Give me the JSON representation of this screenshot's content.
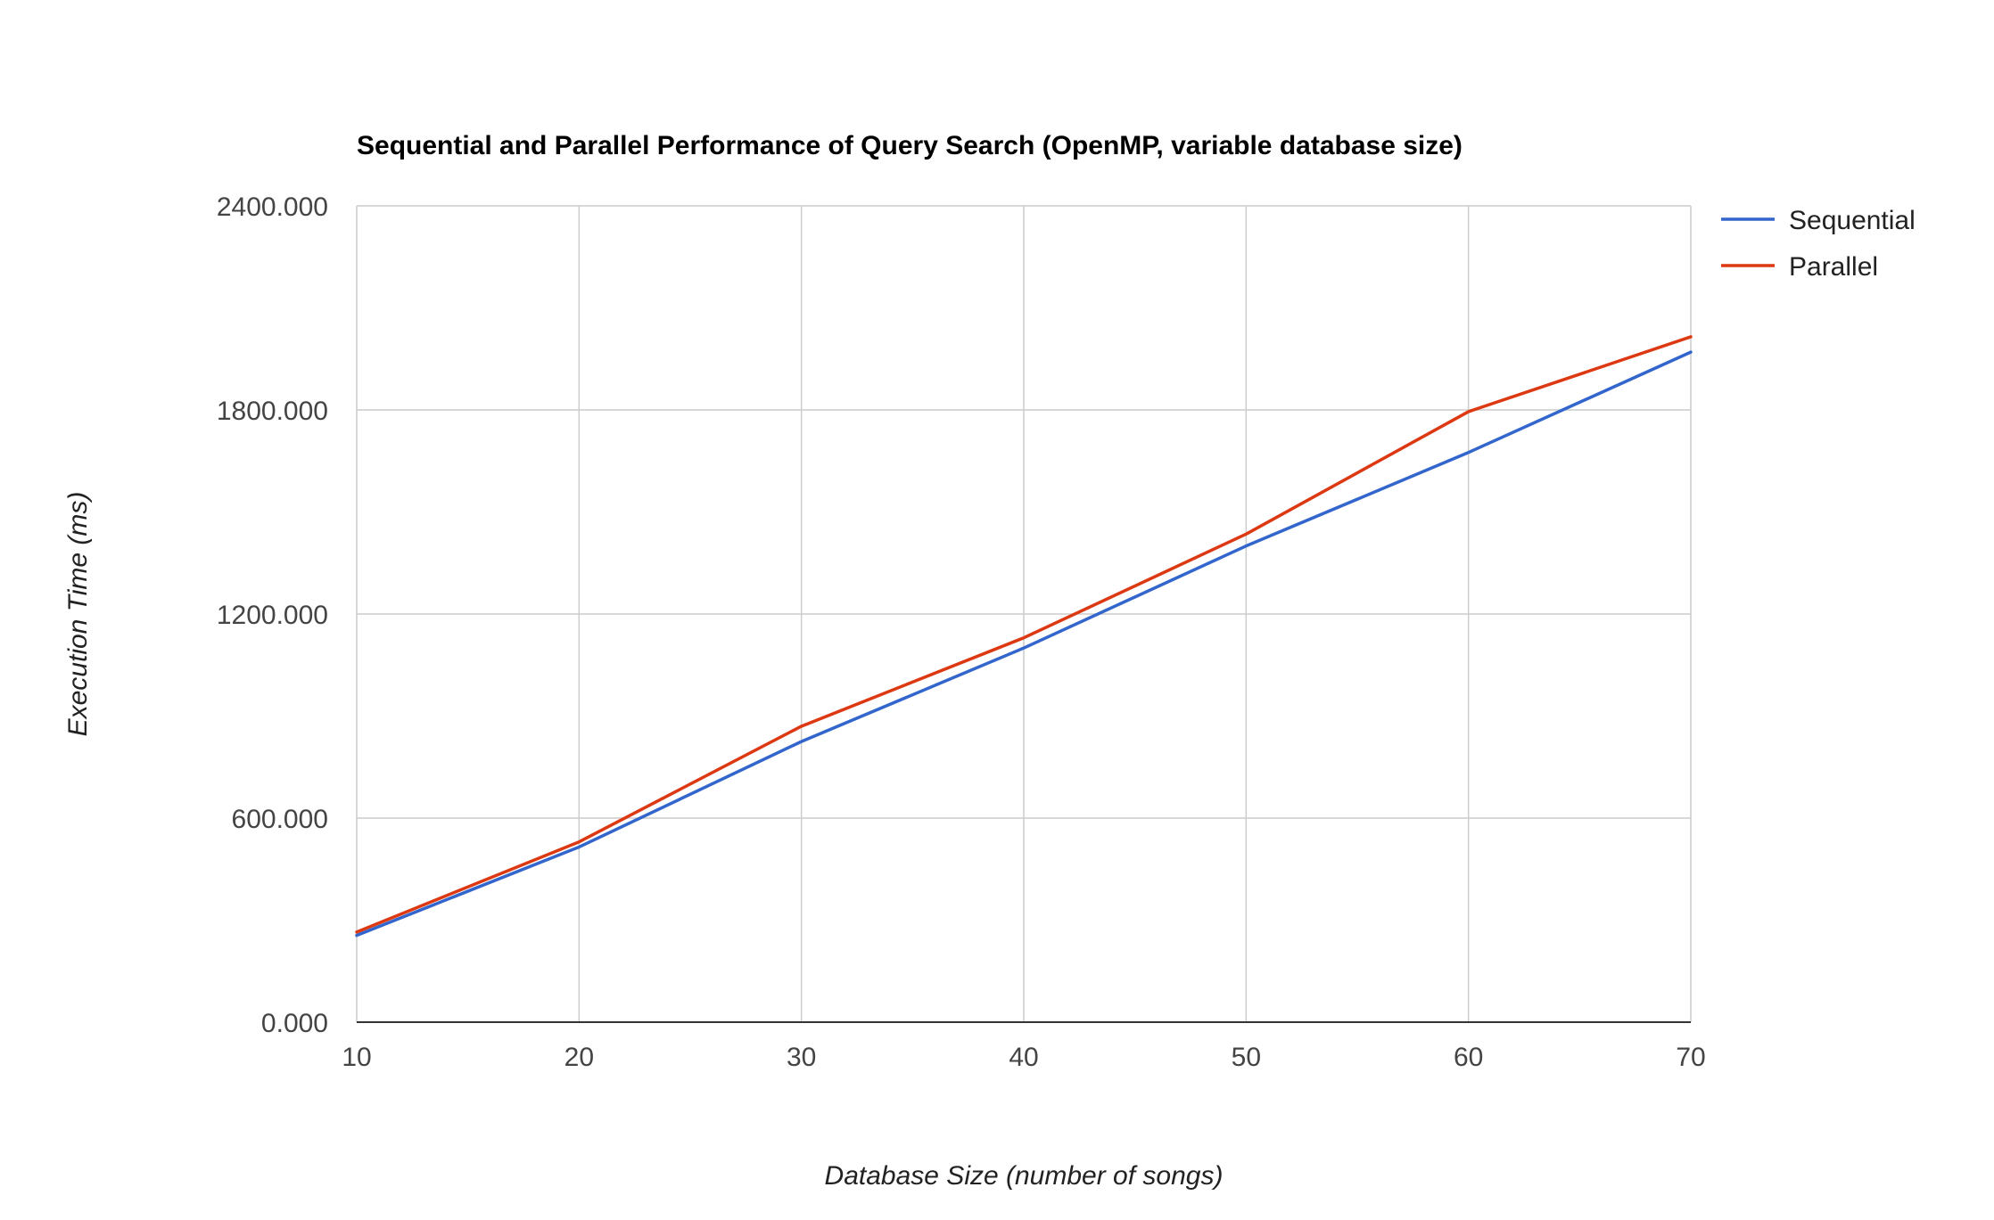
{
  "chart_data": {
    "type": "line",
    "title": "Sequential and Parallel Performance of Query Search (OpenMP, variable database size)",
    "xlabel": "Database Size (number of songs)",
    "ylabel": "Execution Time (ms)",
    "x": [
      10,
      20,
      30,
      40,
      50,
      60,
      70
    ],
    "x_tick_labels": [
      "10",
      "20",
      "30",
      "40",
      "50",
      "60",
      "70"
    ],
    "y_tick_labels": [
      "0.000",
      "600.000",
      "1200.000",
      "1800.000",
      "2400.000"
    ],
    "y_ticks": [
      0,
      600,
      1200,
      1800,
      2400
    ],
    "xlim": [
      10,
      70
    ],
    "ylim": [
      0,
      2400
    ],
    "grid": true,
    "legend_position": "right",
    "series": [
      {
        "name": "Sequential",
        "color": "#3366cc",
        "values": [
          255,
          515,
          825,
          1100,
          1400,
          1675,
          1970
        ]
      },
      {
        "name": "Parallel",
        "color": "#dc3912",
        "values": [
          265,
          530,
          870,
          1130,
          1435,
          1795,
          2015
        ]
      }
    ]
  }
}
